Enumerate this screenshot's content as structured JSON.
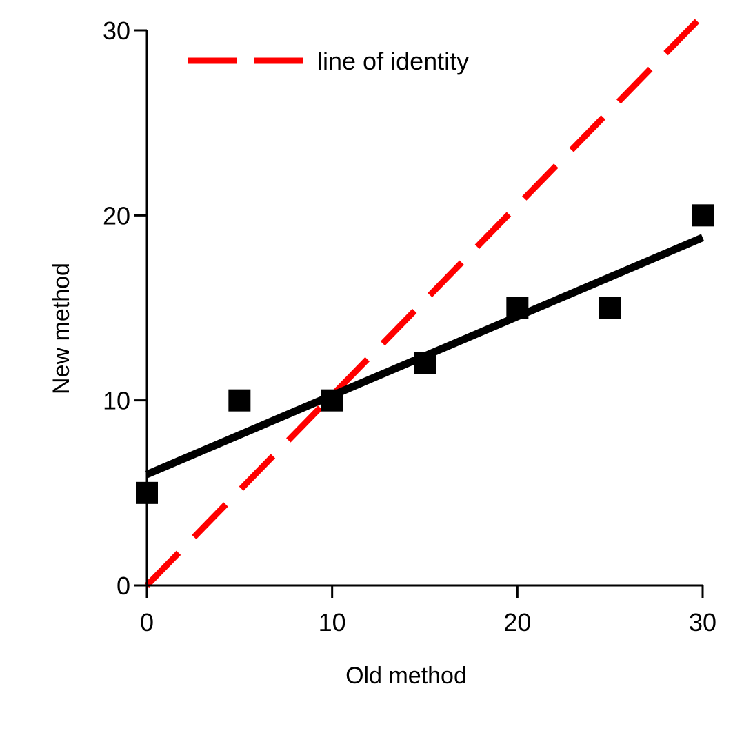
{
  "chart_data": {
    "type": "scatter",
    "title": "",
    "xlabel": "Old method",
    "ylabel": "New method",
    "xlim": [
      0,
      30
    ],
    "ylim": [
      0,
      30
    ],
    "xticks": [
      0,
      10,
      20,
      30
    ],
    "yticks": [
      0,
      10,
      20,
      30
    ],
    "xtick_labels": [
      "0",
      "10",
      "20",
      "30"
    ],
    "ytick_labels": [
      "0",
      "10",
      "20",
      "30"
    ],
    "grid": false,
    "legend_position": "top-left",
    "series": [
      {
        "kind": "points",
        "marker": "square",
        "color": "#000000",
        "x": [
          0,
          5,
          10,
          15,
          20,
          25,
          30
        ],
        "y": [
          5,
          10,
          10,
          12,
          15,
          15,
          20
        ]
      },
      {
        "kind": "fit-line",
        "color": "#000000",
        "x": [
          0,
          30
        ],
        "y": [
          6,
          18.8
        ]
      },
      {
        "name": "line of identity",
        "kind": "identity-line",
        "style": "dashed",
        "color": "#ff0000",
        "x": [
          0,
          30
        ],
        "y": [
          0,
          30
        ]
      }
    ]
  }
}
